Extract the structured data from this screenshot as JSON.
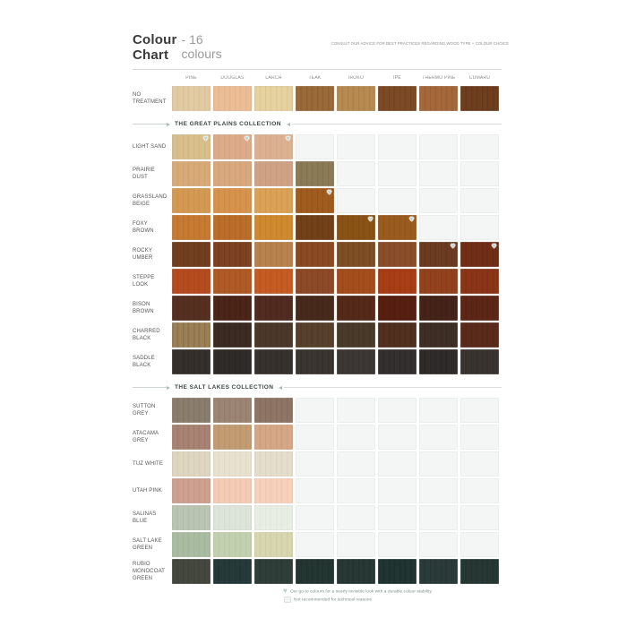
{
  "header": {
    "title": "Colour Chart",
    "subtitle": "- 16 colours",
    "disclaimer": "CONSULT OUR ADVICE FOR BEST PRACTICES REGARDING WOOD TYPE + COLOUR CHOICE"
  },
  "columns": [
    "PINE",
    "DOUGLAS",
    "LARCH",
    "TEAK",
    "IROKO",
    "IPÉ",
    "THERMO PINE",
    "CUMARU"
  ],
  "accent_colors": {
    "goto_icon": "#c2d3d0",
    "collection_text": "#3d4645",
    "empty_cell": "#f4f6f5"
  },
  "sections": [
    {
      "type": "row",
      "label": "NO TREATMENT",
      "cells": [
        {
          "color": "#e2cba4",
          "grain": "#c9ae7c"
        },
        {
          "color": "#ecbe97",
          "grain": "#d89c72"
        },
        {
          "color": "#e6d2a0",
          "grain": "#cdb071"
        },
        {
          "color": "#9a6a38",
          "grain": "#744a22"
        },
        {
          "color": "#b78a52",
          "grain": "#966a38"
        },
        {
          "color": "#7d4a26",
          "grain": "#5c3114"
        },
        {
          "color": "#a5683a",
          "grain": "#814a24"
        },
        {
          "color": "#6e3e1e",
          "grain": "#512a10"
        }
      ]
    },
    {
      "type": "collection",
      "label": "THE GREAT PLAINS COLLECTION"
    },
    {
      "type": "row",
      "label": "LIGHT SAND",
      "cells": [
        {
          "color": "#d8bf8c",
          "grain": "#c2a66e",
          "icon": true
        },
        {
          "color": "#dcab89",
          "grain": "#c99271",
          "icon": true
        },
        {
          "color": "#dcb192",
          "grain": "#c89876",
          "icon": true
        },
        null,
        null,
        null,
        null,
        null
      ]
    },
    {
      "type": "row",
      "label": "PRAIRIE DUST",
      "cells": [
        {
          "color": "#d7aa77",
          "grain": "#c3925e"
        },
        {
          "color": "#d8a87e",
          "grain": "#c49063"
        },
        {
          "color": "#cfa286",
          "grain": "#ba8a6b"
        },
        {
          "color": "#8b7b57",
          "grain": "#6f6140"
        },
        null,
        null,
        null,
        null
      ]
    },
    {
      "type": "row",
      "label": "GRASSLAND BEIGE",
      "cells": [
        {
          "color": "#d49a54",
          "grain": "#bd813c"
        },
        {
          "color": "#d6934d",
          "grain": "#bd7a35"
        },
        {
          "color": "#daa257",
          "grain": "#c2873d"
        },
        {
          "color": "#a05c1e",
          "grain": "#824512",
          "icon": true
        },
        null,
        null,
        null,
        null
      ]
    },
    {
      "type": "row",
      "label": "FOXY BROWN",
      "cells": [
        {
          "color": "#c67a32",
          "grain": "#ab6120"
        },
        {
          "color": "#ba6e2a",
          "grain": "#9e5519"
        },
        {
          "color": "#cf8a30",
          "grain": "#b3701e"
        },
        {
          "color": "#72411a",
          "grain": "#572c0c"
        },
        {
          "color": "#8a5316",
          "grain": "#6f3e0c",
          "icon": true
        },
        {
          "color": "#9a5c1e",
          "grain": "#7e4610",
          "icon": true
        },
        null,
        null
      ]
    },
    {
      "type": "row",
      "label": "ROCKY UMBER",
      "cells": [
        {
          "color": "#713f20",
          "grain": "#562c12"
        },
        {
          "color": "#7c4222",
          "grain": "#602e12"
        },
        {
          "color": "#b8824e",
          "grain": "#9e6936"
        },
        {
          "color": "#8a4a24",
          "grain": "#6e3614"
        },
        {
          "color": "#7e4e24",
          "grain": "#633a14"
        },
        {
          "color": "#8a4f2a",
          "grain": "#6e3a18"
        },
        {
          "color": "#6b3c22",
          "grain": "#512a12",
          "icon": true
        },
        {
          "color": "#702e16",
          "grain": "#561e0a",
          "icon": true
        }
      ]
    },
    {
      "type": "row",
      "label": "STEPPE LOOK",
      "cells": [
        {
          "color": "#b54c20",
          "grain": "#9a3910"
        },
        {
          "color": "#b05a26",
          "grain": "#954514"
        },
        {
          "color": "#c45c24",
          "grain": "#a84712"
        },
        {
          "color": "#8c4a28",
          "grain": "#713616"
        },
        {
          "color": "#a44e1e",
          "grain": "#893a0e"
        },
        {
          "color": "#a83e16",
          "grain": "#8d2c08"
        },
        {
          "color": "#93421e",
          "grain": "#78300e"
        },
        {
          "color": "#8a3518",
          "grain": "#70250a"
        }
      ]
    },
    {
      "type": "row",
      "label": "BISON BROWN",
      "cells": [
        {
          "color": "#553020",
          "grain": "#402214"
        },
        {
          "color": "#4a2518",
          "grain": "#36180c"
        },
        {
          "color": "#512a20",
          "grain": "#3c1d12"
        },
        {
          "color": "#482a1d",
          "grain": "#351d10"
        },
        {
          "color": "#552a1a",
          "grain": "#401d0e"
        },
        {
          "color": "#571f10",
          "grain": "#421406"
        },
        {
          "color": "#462318",
          "grain": "#33170c"
        },
        {
          "color": "#5c2716",
          "grain": "#461a0a"
        }
      ]
    },
    {
      "type": "row",
      "label": "CHARRED BLACK",
      "cells": [
        {
          "color": "#9c8055",
          "grain": "#5f4c30"
        },
        {
          "color": "#3b2b22",
          "grain": "#281c14"
        },
        {
          "color": "#4c382b",
          "grain": "#38271c"
        },
        {
          "color": "#57402c",
          "grain": "#412e1d"
        },
        {
          "color": "#4a3a29",
          "grain": "#362919"
        },
        {
          "color": "#51301f",
          "grain": "#3c2110"
        },
        {
          "color": "#3e2e26",
          "grain": "#2b1f18"
        },
        {
          "color": "#5a2b1a",
          "grain": "#441d0c"
        }
      ]
    },
    {
      "type": "row",
      "label": "SADDLE BLACK",
      "cells": [
        {
          "color": "#35302c",
          "grain": "#23201d"
        },
        {
          "color": "#2f2b29",
          "grain": "#1f1c1b"
        },
        {
          "color": "#36312d",
          "grain": "#24211e"
        },
        {
          "color": "#3b3531",
          "grain": "#282421"
        },
        {
          "color": "#3c3734",
          "grain": "#292624"
        },
        {
          "color": "#343030",
          "grain": "#232020"
        },
        {
          "color": "#2e2b29",
          "grain": "#1e1c1b"
        },
        {
          "color": "#393330",
          "grain": "#262220"
        }
      ]
    },
    {
      "type": "collection",
      "label": "THE SALT LAKES COLLECTION"
    },
    {
      "type": "row",
      "label": "SUTTON GREY",
      "cells": [
        {
          "color": "#8b7d6d",
          "grain": "#6f6354"
        },
        {
          "color": "#9c8574",
          "grain": "#80695a"
        },
        {
          "color": "#8e7566",
          "grain": "#725b4d"
        },
        null,
        null,
        null,
        null,
        null
      ]
    },
    {
      "type": "row",
      "label": "ATACAMA GREY",
      "cells": [
        {
          "color": "#a88272",
          "grain": "#8a6757"
        },
        {
          "color": "#c39c74",
          "grain": "#a8805a"
        },
        {
          "color": "#d5a787",
          "grain": "#ba8c6c"
        },
        null,
        null,
        null,
        null,
        null
      ]
    },
    {
      "type": "row",
      "label": "TUZ WHITE",
      "cells": [
        {
          "color": "#ded6c1",
          "grain": "#c5bba1"
        },
        {
          "color": "#e9e1d0",
          "grain": "#d2c6ae"
        },
        {
          "color": "#e5ddcc",
          "grain": "#cdc1a9"
        },
        null,
        null,
        null,
        null,
        null
      ]
    },
    {
      "type": "row",
      "label": "UTAH PINK",
      "cells": [
        {
          "color": "#cda08f",
          "grain": "#b38674"
        },
        {
          "color": "#f4ccb6",
          "grain": "#deb298"
        },
        {
          "color": "#f7d1bc",
          "grain": "#e2b89e"
        },
        null,
        null,
        null,
        null,
        null
      ]
    },
    {
      "type": "row",
      "label": "SALINAS BLUE",
      "cells": [
        {
          "color": "#bac5b3",
          "grain": "#a2ad9a"
        },
        {
          "color": "#dde4da",
          "grain": "#c6cfc2"
        },
        {
          "color": "#e9eee5",
          "grain": "#d3dacd"
        },
        null,
        null,
        null,
        null,
        null
      ]
    },
    {
      "type": "row",
      "label": "SALT LAKE GREEN",
      "cells": [
        {
          "color": "#a9bca1",
          "grain": "#91a588"
        },
        {
          "color": "#c3d0af",
          "grain": "#abb993"
        },
        {
          "color": "#d7d6af",
          "grain": "#bfbd92"
        },
        null,
        null,
        null,
        null,
        null
      ]
    },
    {
      "type": "row",
      "label": "RUBIO MONOCOAT GREEN",
      "cells": [
        {
          "color": "#45483f",
          "grain": "#32352d"
        },
        {
          "color": "#253b39",
          "grain": "#172927"
        },
        {
          "color": "#2f3e39",
          "grain": "#202d28"
        },
        {
          "color": "#243632",
          "grain": "#162522"
        },
        {
          "color": "#273835",
          "grain": "#182725"
        },
        {
          "color": "#203431",
          "grain": "#132421"
        },
        {
          "color": "#2b3b39",
          "grain": "#1c2a28"
        },
        {
          "color": "#273834",
          "grain": "#182723"
        }
      ]
    }
  ],
  "legend": [
    {
      "icon": "goto-heart-icon",
      "text": "Our go-to colours for a nearly invisible look with a durable colour stability"
    },
    {
      "icon": "empty-swatch-icon",
      "text": "Not recommended for technical reasons"
    }
  ]
}
